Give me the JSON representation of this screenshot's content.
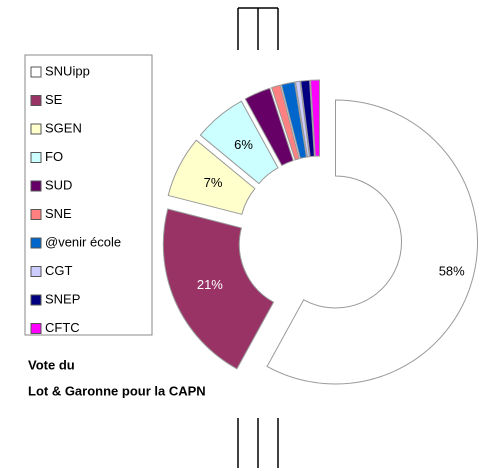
{
  "chart_data": {
    "type": "donut",
    "title": "Vote du",
    "subtitle": "Lot & Garonne pour la CAPN",
    "categories": [
      "SNUipp",
      "SE",
      "SGEN",
      "FO",
      "SUD",
      "SNE",
      "@venir école",
      "CGT",
      "SNEP",
      "CFTC"
    ],
    "values": [
      58,
      21,
      7,
      6,
      3,
      1,
      1.5,
      0.5,
      1,
      1
    ],
    "value_labels": [
      "58%",
      "21%",
      "7%",
      "6%",
      null,
      null,
      null,
      null,
      null,
      null
    ],
    "colors": [
      "#ffffff",
      "#993366",
      "#ffffcc",
      "#ccffff",
      "#660066",
      "#ff8080",
      "#0066cc",
      "#ccccff",
      "#000080",
      "#ff00ff"
    ],
    "legend": "left"
  }
}
